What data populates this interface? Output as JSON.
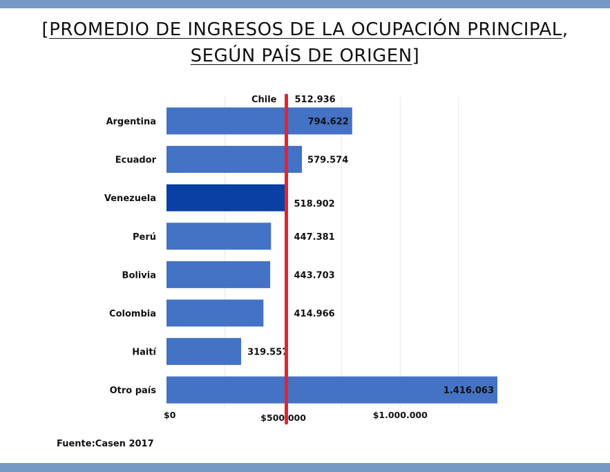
{
  "title": {
    "open_bracket": "[",
    "line1": "PROMEDIO DE INGRESOS DE LA OCUPACIÓN PRINCIPAL",
    "comma": ",",
    "line2": "SEGÚN PAÍS DE ORIGEN",
    "close_bracket": "]"
  },
  "source": "Fuente:Casen 2017",
  "colors": {
    "bar": "#4472c4",
    "highlight_bar": "#0a3fa3",
    "reference_line": "#e0262b",
    "band": "#7598c4"
  },
  "chart_data": {
    "type": "bar",
    "orientation": "horizontal",
    "categories": [
      "Argentina",
      "Ecuador",
      "Venezuela",
      "Perú",
      "Bolivia",
      "Colombia",
      "Haití",
      "Otro país"
    ],
    "values": [
      794622,
      579574,
      518902,
      447381,
      443703,
      414966,
      319557,
      1416063
    ],
    "value_labels": [
      "794.622",
      "579.574",
      "518.902",
      "447.381",
      "443.703",
      "414.966",
      "319.557",
      "1.416.063"
    ],
    "highlight": "Venezuela",
    "reference": {
      "name": "Chile",
      "value": 512936,
      "label": "512.936"
    },
    "x_ticks": [
      {
        "value": 0,
        "label": "$0"
      },
      {
        "value": 500000,
        "label": "$500.000"
      },
      {
        "value": 1000000,
        "label": "$1.000.000"
      }
    ],
    "xlim": [
      0,
      1416063
    ],
    "grid": true
  }
}
